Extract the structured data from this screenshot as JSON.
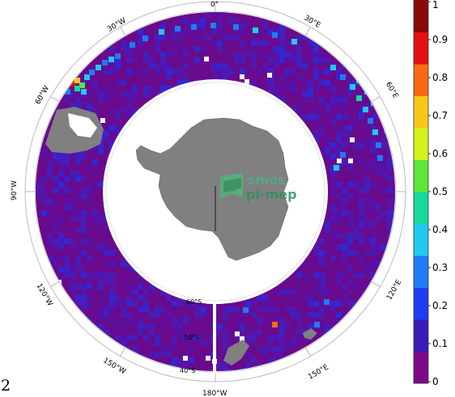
{
  "panel_number": "2",
  "map": {
    "projection": "south-polar-stereographic",
    "lon_labels": [
      "0°",
      "30°E",
      "60°E",
      "90°E",
      "120°E",
      "150°E",
      "180°W",
      "150°W",
      "120°W",
      "90°W",
      "60°W",
      "30°W"
    ],
    "lat_labels": [
      "60°S",
      "50°S",
      "40°S"
    ],
    "logo": {
      "line1": "smos",
      "line2": "pi-mep"
    },
    "colors": {
      "land": "#808080",
      "ocean_low": "#6a0a8c",
      "background": "#ffffff"
    }
  },
  "colorbar": {
    "ticks": [
      "0",
      "0.1",
      "0.2",
      "0.3",
      "0.4",
      "0.5",
      "0.6",
      "0.7",
      "0.8",
      "0.9",
      "1"
    ],
    "range": [
      0,
      1
    ],
    "colors": [
      "#7a0a8a",
      "#3a1ab8",
      "#1f3cf0",
      "#1e7cf5",
      "#22c8f0",
      "#18d8a0",
      "#5ee63a",
      "#d6f21a",
      "#f8c818",
      "#f86a12",
      "#e41010",
      "#8a0a0a"
    ]
  }
}
